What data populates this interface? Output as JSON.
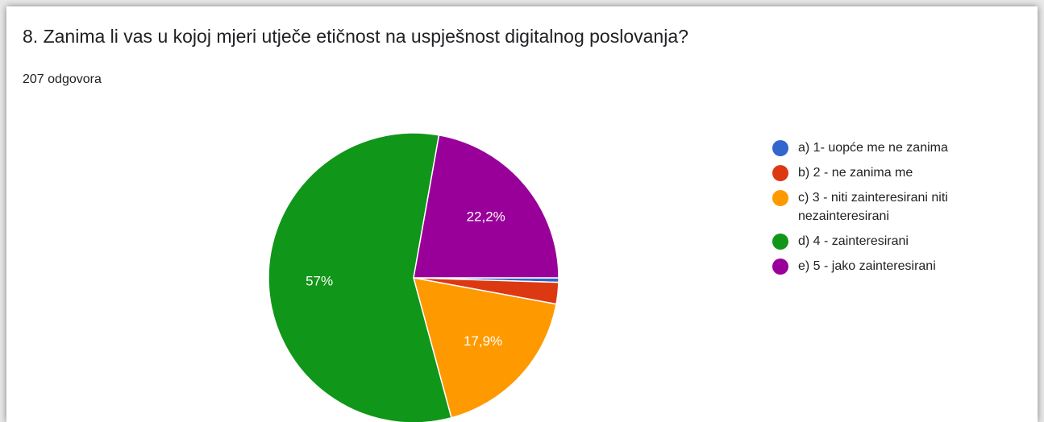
{
  "chart_data": {
    "type": "pie",
    "title": "8. Zanima li vas u kojoj mjeri utječe etičnost na uspješnost digitalnog poslovanja?",
    "subtitle": "207 odgovora",
    "categories": [
      "a) 1- uopće me ne zanima",
      "b) 2 - ne zanima me",
      "c) 3 - niti zainteresirani niti nezainteresirani",
      "d) 4 - zainteresirani",
      "e) 5 - jako zainteresirani"
    ],
    "values": [
      0.5,
      2.4,
      17.9,
      57,
      22.2
    ],
    "value_labels": [
      null,
      null,
      "17,9%",
      "57%",
      "22,2%"
    ],
    "colors": [
      "#3366cc",
      "#dc3912",
      "#ff9900",
      "#109618",
      "#990099"
    ],
    "legend": "right"
  }
}
